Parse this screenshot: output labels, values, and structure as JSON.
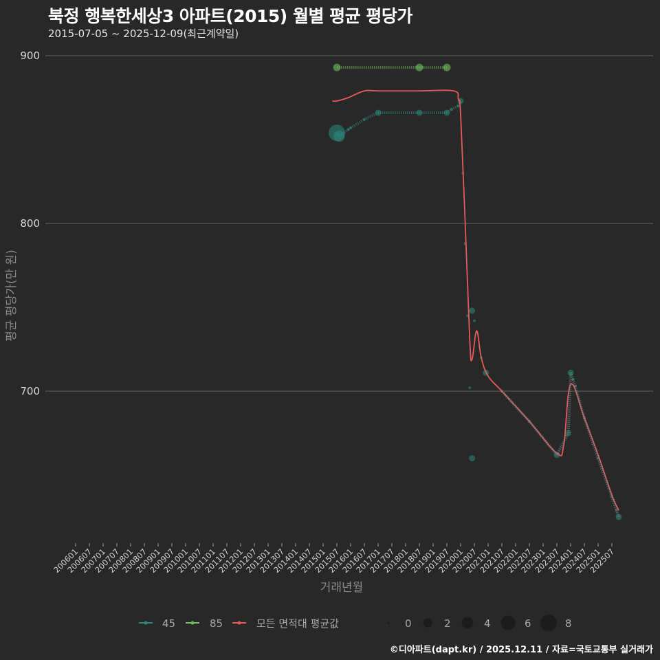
{
  "header": {
    "title": "북정 행복한세상3 아파트(2015) 월별 평균 평당가",
    "subtitle": "2015-07-05 ~ 2025-12-09(최근계약일)"
  },
  "footer": {
    "credit": "©디아파트(dapt.kr) / 2025.12.11 / 자료=국토교통부 실거래가"
  },
  "colors": {
    "background": "#282828",
    "grid": "#5a5a5a",
    "series_45": "#2a8a80",
    "series_85": "#6fbf5a",
    "series_avg": "#e85a5a"
  },
  "chart_data": {
    "type": "line",
    "title": "북정 행복한세상3 아파트(2015) 월별 평균 평당가",
    "subtitle": "2015-07-05 ~ 2025-12-09(최근계약일)",
    "xlabel": "거래년월",
    "ylabel": "평균 평당가(만 원)",
    "ylim": [
      620,
      910
    ],
    "yticks": [
      700,
      800,
      900
    ],
    "grid": true,
    "legend_position": "bottom",
    "x_tick_labels": [
      "200601",
      "200607",
      "200701",
      "200707",
      "200801",
      "200807",
      "200901",
      "200907",
      "201001",
      "201007",
      "201101",
      "201107",
      "201201",
      "201207",
      "201301",
      "201307",
      "201401",
      "201407",
      "201501",
      "201507",
      "201601",
      "201607",
      "201701",
      "201707",
      "201801",
      "201807",
      "201901",
      "201907",
      "202001",
      "202007",
      "202101",
      "202107",
      "202201",
      "202207",
      "202301",
      "202307",
      "202401",
      "202407",
      "202501",
      "202507"
    ],
    "series": [
      {
        "name": "45",
        "color": "#2a8a80",
        "points": [
          {
            "x": "201507",
            "y": 854,
            "count": 8
          },
          {
            "x": "201508",
            "y": 852,
            "count": 5
          },
          {
            "x": "201512",
            "y": 856,
            "count": 0
          },
          {
            "x": "201601",
            "y": 857,
            "count": 0
          },
          {
            "x": "201607",
            "y": 862,
            "count": 0
          },
          {
            "x": "201701",
            "y": 866,
            "count": 2
          },
          {
            "x": "201807",
            "y": 866,
            "count": 2
          },
          {
            "x": "201907",
            "y": 866,
            "count": 2
          },
          {
            "x": "201909",
            "y": 868,
            "count": 0
          },
          {
            "x": "201912",
            "y": 870,
            "count": 0
          },
          {
            "x": "202001",
            "y": 873,
            "count": 2
          },
          {
            "x": "202002",
            "y": 830,
            "count": 0
          },
          {
            "x": "202003",
            "y": 788,
            "count": 0
          },
          {
            "x": "202004",
            "y": 745,
            "count": 0
          },
          {
            "x": "202005",
            "y": 702,
            "count": 0
          },
          {
            "x": "202006",
            "y": 748,
            "count": 2
          },
          {
            "x": "202006",
            "y": 660,
            "count": 2
          },
          {
            "x": "202007",
            "y": 742,
            "count": 0
          },
          {
            "x": "202008",
            "y": 735,
            "count": 0
          },
          {
            "x": "202010",
            "y": 720,
            "count": 0
          },
          {
            "x": "202012",
            "y": 711,
            "count": 2
          },
          {
            "x": "202107",
            "y": 700,
            "count": 0
          },
          {
            "x": "202207",
            "y": 682,
            "count": 0
          },
          {
            "x": "202307",
            "y": 662,
            "count": 2
          },
          {
            "x": "202312",
            "y": 675,
            "count": 2
          },
          {
            "x": "202401",
            "y": 711,
            "count": 2
          },
          {
            "x": "202402",
            "y": 707,
            "count": 0
          },
          {
            "x": "202403",
            "y": 703,
            "count": 0
          },
          {
            "x": "202407",
            "y": 684,
            "count": 0
          },
          {
            "x": "202501",
            "y": 660,
            "count": 0
          },
          {
            "x": "202507",
            "y": 637,
            "count": 0
          },
          {
            "x": "202509",
            "y": 629,
            "count": 0
          },
          {
            "x": "202510",
            "y": 625,
            "count": 2
          }
        ]
      },
      {
        "name": "85",
        "color": "#6fbf5a",
        "points": [
          {
            "x": "201507",
            "y": 893,
            "count": 1
          },
          {
            "x": "201807",
            "y": 893,
            "count": 1
          },
          {
            "x": "201907",
            "y": 893,
            "count": 1
          }
        ]
      },
      {
        "name": "모든 면적대 평균값",
        "color": "#e85a5a",
        "points": [
          {
            "x": "201505",
            "y": 873
          },
          {
            "x": "201507",
            "y": 873
          },
          {
            "x": "201512",
            "y": 875
          },
          {
            "x": "201607",
            "y": 879
          },
          {
            "x": "201701",
            "y": 879
          },
          {
            "x": "201807",
            "y": 879
          },
          {
            "x": "201910",
            "y": 879
          },
          {
            "x": "201912",
            "y": 874
          },
          {
            "x": "202001",
            "y": 865
          },
          {
            "x": "202003",
            "y": 800
          },
          {
            "x": "202005",
            "y": 730
          },
          {
            "x": "202006",
            "y": 719
          },
          {
            "x": "202008",
            "y": 736
          },
          {
            "x": "202010",
            "y": 720
          },
          {
            "x": "202101",
            "y": 709
          },
          {
            "x": "202107",
            "y": 700
          },
          {
            "x": "202207",
            "y": 682
          },
          {
            "x": "202307",
            "y": 663
          },
          {
            "x": "202310",
            "y": 668
          },
          {
            "x": "202401",
            "y": 704
          },
          {
            "x": "202407",
            "y": 684
          },
          {
            "x": "202501",
            "y": 662
          },
          {
            "x": "202507",
            "y": 638
          },
          {
            "x": "202510",
            "y": 629
          }
        ]
      }
    ],
    "size_legend": {
      "title": "",
      "values": [
        0,
        2,
        4,
        6,
        8
      ]
    }
  },
  "legend": {
    "items": [
      {
        "label": "45",
        "color": "#2a8a80"
      },
      {
        "label": "85",
        "color": "#6fbf5a"
      },
      {
        "label": "모든 면적대 평균값",
        "color": "#e85a5a"
      }
    ],
    "sizes": [
      "0",
      "2",
      "4",
      "6",
      "8"
    ]
  },
  "axes": {
    "x_title": "거래년월",
    "y_title": "평균 평당가(만 원)",
    "y_labels": [
      "900",
      "800",
      "700"
    ]
  }
}
